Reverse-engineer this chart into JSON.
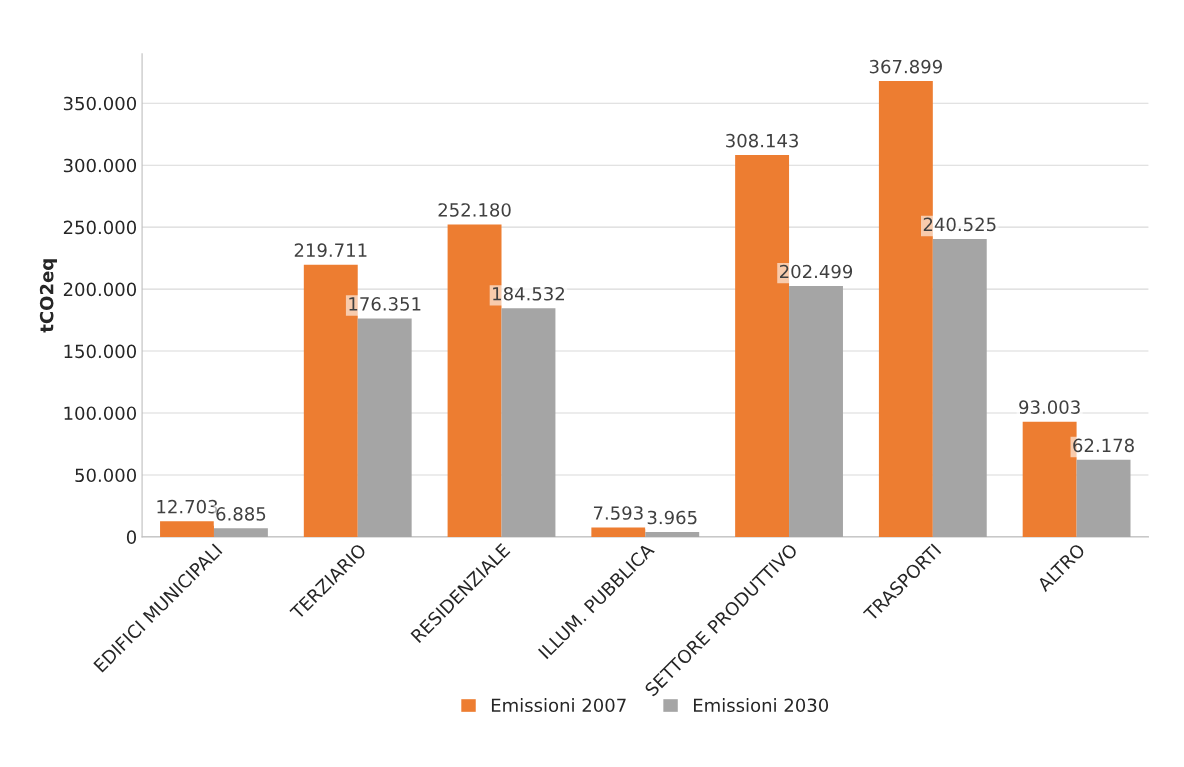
{
  "chart_data": {
    "type": "bar",
    "ylabel": "tCO2eq",
    "categories": [
      "EDIFICI MUNICIPALI",
      "TERZIARIO",
      "RESIDENZIALE",
      "ILLUM. PUBBLICA",
      "SETTORE PRODUTTIVO",
      "TRASPORTI",
      "ALTRO"
    ],
    "series": [
      {
        "name": "Emissioni 2007",
        "color": "#ed7d31",
        "values": [
          12703,
          219711,
          252180,
          7593,
          308143,
          367899,
          93003
        ],
        "value_labels": [
          "12.703",
          "219.711",
          "252.180",
          "7.593",
          "308.143",
          "367.899",
          "93.003"
        ]
      },
      {
        "name": "Emissioni 2030",
        "color": "#a5a5a5",
        "values": [
          6885,
          176351,
          184532,
          3965,
          202499,
          240525,
          62178
        ],
        "value_labels": [
          "6.885",
          "176.351",
          "184.532",
          "3.965",
          "202.499",
          "240.525",
          "62.178"
        ]
      }
    ],
    "ylim": [
      0,
      390000
    ],
    "yticks": [
      0,
      {
        "value": 50000,
        "label": "50.000"
      },
      {
        "value": 100000,
        "label": "100.000"
      },
      {
        "value": 150000,
        "label": "150.000"
      },
      {
        "value": 200000,
        "label": "200.000"
      },
      {
        "value": 250000,
        "label": "250.000"
      },
      {
        "value": 300000,
        "label": "300.000"
      },
      {
        "value": 350000,
        "label": "350.000"
      }
    ],
    "grid": "y",
    "legend": "bottom"
  }
}
